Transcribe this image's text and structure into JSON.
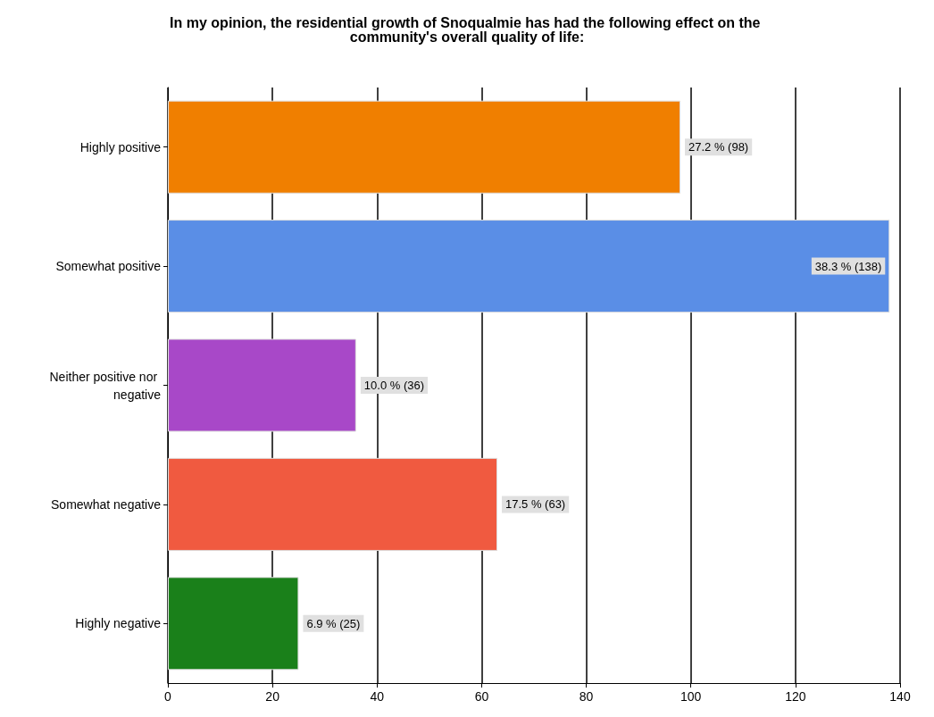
{
  "chart_data": {
    "type": "bar",
    "orientation": "horizontal",
    "title": "In my opinion, the residential growth of Snoqualmie has had the following effect on the community's overall quality of life:",
    "categories": [
      "Highly positive",
      "Somewhat positive",
      "Neither positive nor negative",
      "Somewhat negative",
      "Highly negative"
    ],
    "values": [
      98,
      138,
      36,
      63,
      25
    ],
    "colors": [
      "#f07f00",
      "#5a8ee6",
      "#a848c8",
      "#f05a40",
      "#1a801a"
    ],
    "value_labels": [
      "27.2 % (98)",
      "38.3 % (138)",
      "10.0 % (36)",
      "17.5 % (63)",
      "6.9 % (25)"
    ],
    "xlim": [
      0,
      140
    ],
    "xticks": [
      0,
      20,
      40,
      60,
      80,
      100,
      120,
      140
    ],
    "grid": "x"
  }
}
